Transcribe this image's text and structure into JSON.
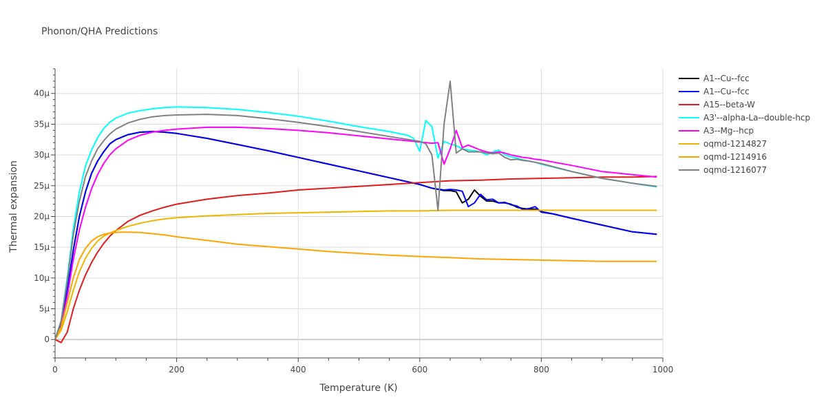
{
  "chart_data": {
    "type": "line",
    "title": "Phonon/QHA Predictions",
    "xlabel": "Temperature (K)",
    "ylabel": "Thermal expansion",
    "xlim": [
      0,
      1000
    ],
    "ylim": [
      -3e-06,
      4.4e-05
    ],
    "x_ticks": [
      0,
      200,
      400,
      600,
      800,
      1000
    ],
    "x_tick_labels": [
      "0",
      "200",
      "400",
      "600",
      "800",
      "1000"
    ],
    "y_ticks": [
      0,
      5e-06,
      1e-05,
      1.5e-05,
      2e-05,
      2.5e-05,
      3e-05,
      3.5e-05,
      4e-05
    ],
    "y_tick_labels": [
      "0",
      "5μ",
      "10μ",
      "15μ",
      "20μ",
      "25μ",
      "30μ",
      "35μ",
      "40μ"
    ],
    "grid": true,
    "legend_position": "right",
    "series": [
      {
        "name": "A1--Cu--fcc",
        "color": "#000000",
        "x": [
          0,
          10,
          20,
          30,
          40,
          50,
          60,
          70,
          80,
          90,
          100,
          120,
          140,
          160,
          180,
          200,
          250,
          300,
          350,
          400,
          450,
          500,
          550,
          600,
          620,
          640,
          650,
          660,
          670,
          680,
          690,
          700,
          710,
          720,
          730,
          740,
          750,
          760,
          770,
          780,
          790,
          800,
          820,
          850,
          900,
          950,
          990
        ],
        "y": [
          0,
          2.5e-06,
          8e-06,
          1.45e-05,
          2e-05,
          2.4e-05,
          2.7e-05,
          2.9e-05,
          3.05e-05,
          3.18e-05,
          3.25e-05,
          3.33e-05,
          3.37e-05,
          3.38e-05,
          3.37e-05,
          3.35e-05,
          3.27e-05,
          3.17e-05,
          3.07e-05,
          2.96e-05,
          2.85e-05,
          2.74e-05,
          2.63e-05,
          2.52e-05,
          2.46e-05,
          2.42e-05,
          2.42e-05,
          2.4e-05,
          2.22e-05,
          2.28e-05,
          2.43e-05,
          2.33e-05,
          2.25e-05,
          2.25e-05,
          2.22e-05,
          2.22e-05,
          2.2e-05,
          2.15e-05,
          2.13e-05,
          2.12e-05,
          2.12e-05,
          2.08e-05,
          2.04e-05,
          1.97e-05,
          1.86e-05,
          1.75e-05,
          1.71e-05
        ]
      },
      {
        "name": "A1--Cu--fcc",
        "color": "#0000ff",
        "x": [
          0,
          10,
          20,
          30,
          40,
          50,
          60,
          70,
          80,
          90,
          100,
          120,
          140,
          160,
          180,
          200,
          250,
          300,
          350,
          400,
          450,
          500,
          550,
          600,
          620,
          640,
          650,
          660,
          670,
          680,
          690,
          700,
          710,
          720,
          730,
          740,
          750,
          760,
          770,
          780,
          790,
          800,
          820,
          850,
          900,
          950,
          990
        ],
        "y": [
          0,
          2.5e-06,
          8e-06,
          1.45e-05,
          2e-05,
          2.4e-05,
          2.7e-05,
          2.9e-05,
          3.05e-05,
          3.18e-05,
          3.25e-05,
          3.33e-05,
          3.37e-05,
          3.38e-05,
          3.37e-05,
          3.35e-05,
          3.27e-05,
          3.17e-05,
          3.07e-05,
          2.96e-05,
          2.85e-05,
          2.74e-05,
          2.63e-05,
          2.52e-05,
          2.46e-05,
          2.43e-05,
          2.44e-05,
          2.43e-05,
          2.41e-05,
          2.16e-05,
          2.22e-05,
          2.36e-05,
          2.27e-05,
          2.28e-05,
          2.22e-05,
          2.23e-05,
          2.19e-05,
          2.17e-05,
          2.11e-05,
          2.13e-05,
          2.16e-05,
          2.07e-05,
          2.04e-05,
          1.97e-05,
          1.86e-05,
          1.75e-05,
          1.71e-05
        ]
      },
      {
        "name": "A15--beta-W",
        "color": "#e31a1c",
        "x": [
          0,
          10,
          20,
          30,
          40,
          50,
          60,
          70,
          80,
          90,
          100,
          120,
          140,
          160,
          180,
          200,
          250,
          300,
          350,
          400,
          450,
          500,
          550,
          600,
          650,
          700,
          750,
          800,
          850,
          900,
          950,
          990
        ],
        "y": [
          0,
          -5e-07,
          1.2e-06,
          5e-06,
          8e-06,
          1.05e-05,
          1.25e-05,
          1.42e-05,
          1.56e-05,
          1.68e-05,
          1.77e-05,
          1.92e-05,
          2.02e-05,
          2.09e-05,
          2.15e-05,
          2.2e-05,
          2.28e-05,
          2.34e-05,
          2.38e-05,
          2.43e-05,
          2.46e-05,
          2.49e-05,
          2.52e-05,
          2.55e-05,
          2.58e-05,
          2.59e-05,
          2.61e-05,
          2.62e-05,
          2.63e-05,
          2.64e-05,
          2.64e-05,
          2.65e-05
        ]
      },
      {
        "name": "A3'--alpha-La--double-hcp",
        "color": "#00ffff",
        "x": [
          0,
          10,
          20,
          30,
          40,
          50,
          60,
          70,
          80,
          90,
          100,
          120,
          140,
          160,
          180,
          200,
          250,
          300,
          350,
          400,
          450,
          500,
          550,
          580,
          590,
          600,
          610,
          620,
          630,
          640,
          650,
          660,
          670,
          680,
          690,
          700,
          710,
          720,
          730,
          740,
          750,
          760,
          770,
          780,
          790,
          800,
          850,
          900,
          950,
          990
        ],
        "y": [
          0,
          3e-06,
          1e-05,
          1.8e-05,
          2.4e-05,
          2.82e-05,
          3.08e-05,
          3.28e-05,
          3.43e-05,
          3.53e-05,
          3.6e-05,
          3.68e-05,
          3.72e-05,
          3.75e-05,
          3.77e-05,
          3.78e-05,
          3.77e-05,
          3.74e-05,
          3.69e-05,
          3.63e-05,
          3.55e-05,
          3.46e-05,
          3.38e-05,
          3.32e-05,
          3.27e-05,
          3.06e-05,
          3.56e-05,
          3.46e-05,
          2.95e-05,
          3.22e-05,
          3.18e-05,
          3.15e-05,
          3.1e-05,
          3.08e-05,
          3.07e-05,
          3.05e-05,
          3e-05,
          3.05e-05,
          3.08e-05,
          3e-05,
          2.97e-05,
          2.95e-05,
          2.92e-05,
          2.9e-05,
          2.88e-05,
          2.85e-05,
          2.73e-05,
          2.62e-05,
          2.54e-05,
          2.48e-05
        ]
      },
      {
        "name": "A3--Mg--hcp",
        "color": "#ff00ff",
        "x": [
          0,
          10,
          20,
          30,
          40,
          50,
          60,
          70,
          80,
          90,
          100,
          120,
          140,
          160,
          180,
          200,
          250,
          300,
          350,
          400,
          450,
          500,
          550,
          600,
          620,
          630,
          640,
          650,
          660,
          670,
          680,
          690,
          700,
          710,
          720,
          730,
          740,
          750,
          760,
          770,
          780,
          790,
          800,
          850,
          900,
          950,
          990
        ],
        "y": [
          0,
          2e-06,
          7e-06,
          1.3e-05,
          1.78e-05,
          2.15e-05,
          2.45e-05,
          2.68e-05,
          2.86e-05,
          3e-05,
          3.1e-05,
          3.24e-05,
          3.32e-05,
          3.37e-05,
          3.4e-05,
          3.42e-05,
          3.45e-05,
          3.45e-05,
          3.43e-05,
          3.4e-05,
          3.36e-05,
          3.31e-05,
          3.26e-05,
          3.21e-05,
          3.19e-05,
          3.2e-05,
          2.85e-05,
          3.1e-05,
          3.4e-05,
          3.12e-05,
          3.16e-05,
          3.12e-05,
          3.08e-05,
          3.05e-05,
          3.03e-05,
          3.05e-05,
          3.03e-05,
          3e-05,
          2.98e-05,
          2.96e-05,
          2.95e-05,
          2.93e-05,
          2.92e-05,
          2.83e-05,
          2.73e-05,
          2.68e-05,
          2.64e-05
        ]
      },
      {
        "name": "oqmd-1214827",
        "color": "#f0b400",
        "x": [
          0,
          10,
          20,
          30,
          40,
          50,
          60,
          70,
          80,
          90,
          100,
          120,
          140,
          160,
          180,
          200,
          250,
          300,
          350,
          400,
          450,
          500,
          550,
          600,
          650,
          700,
          750,
          800,
          850,
          900,
          950,
          990
        ],
        "y": [
          0,
          1.5e-06,
          4.5e-06,
          8e-06,
          1.1e-05,
          1.32e-05,
          1.48e-05,
          1.6e-05,
          1.68e-05,
          1.73e-05,
          1.77e-05,
          1.84e-05,
          1.89e-05,
          1.93e-05,
          1.96e-05,
          1.98e-05,
          2.01e-05,
          2.03e-05,
          2.05e-05,
          2.06e-05,
          2.07e-05,
          2.08e-05,
          2.09e-05,
          2.09e-05,
          2.1e-05,
          2.1e-05,
          2.1e-05,
          2.1e-05,
          2.1e-05,
          2.1e-05,
          2.1e-05,
          2.1e-05
        ]
      },
      {
        "name": "oqmd-1214916",
        "color": "#ffa500",
        "x": [
          0,
          10,
          20,
          30,
          40,
          50,
          60,
          70,
          80,
          90,
          100,
          110,
          120,
          140,
          160,
          180,
          200,
          250,
          300,
          350,
          400,
          450,
          500,
          550,
          600,
          650,
          700,
          750,
          800,
          850,
          900,
          950,
          990
        ],
        "y": [
          0,
          2e-06,
          6e-06,
          1e-05,
          1.3e-05,
          1.48e-05,
          1.6e-05,
          1.67e-05,
          1.71e-05,
          1.73e-05,
          1.74e-05,
          1.745e-05,
          1.745e-05,
          1.74e-05,
          1.72e-05,
          1.7e-05,
          1.67e-05,
          1.61e-05,
          1.55e-05,
          1.51e-05,
          1.47e-05,
          1.43e-05,
          1.4e-05,
          1.37e-05,
          1.35e-05,
          1.33e-05,
          1.31e-05,
          1.3e-05,
          1.29e-05,
          1.28e-05,
          1.27e-05,
          1.27e-05,
          1.27e-05
        ]
      },
      {
        "name": "oqmd-1216077",
        "color": "#808080",
        "x": [
          0,
          10,
          20,
          30,
          40,
          50,
          60,
          70,
          80,
          90,
          100,
          120,
          140,
          160,
          180,
          200,
          250,
          300,
          350,
          400,
          450,
          500,
          550,
          600,
          610,
          620,
          630,
          640,
          650,
          660,
          670,
          680,
          690,
          700,
          710,
          720,
          730,
          740,
          750,
          760,
          770,
          780,
          790,
          800,
          850,
          900,
          950,
          990
        ],
        "y": [
          0,
          3e-06,
          9.5e-06,
          1.7e-05,
          2.25e-05,
          2.65e-05,
          2.9e-05,
          3.1e-05,
          3.23e-05,
          3.34e-05,
          3.42e-05,
          3.52e-05,
          3.58e-05,
          3.62e-05,
          3.64e-05,
          3.65e-05,
          3.66e-05,
          3.64e-05,
          3.59e-05,
          3.53e-05,
          3.46e-05,
          3.38e-05,
          3.3e-05,
          3.22e-05,
          3.18e-05,
          3e-05,
          2.1e-05,
          3.5e-05,
          4.2e-05,
          3.03e-05,
          3.1e-05,
          3.05e-05,
          3.05e-05,
          3.05e-05,
          3.03e-05,
          3.02e-05,
          3.03e-05,
          2.96e-05,
          2.92e-05,
          2.93e-05,
          2.91e-05,
          2.9e-05,
          2.88e-05,
          2.86e-05,
          2.73e-05,
          2.62e-05,
          2.54e-05,
          2.49e-05
        ]
      }
    ]
  }
}
